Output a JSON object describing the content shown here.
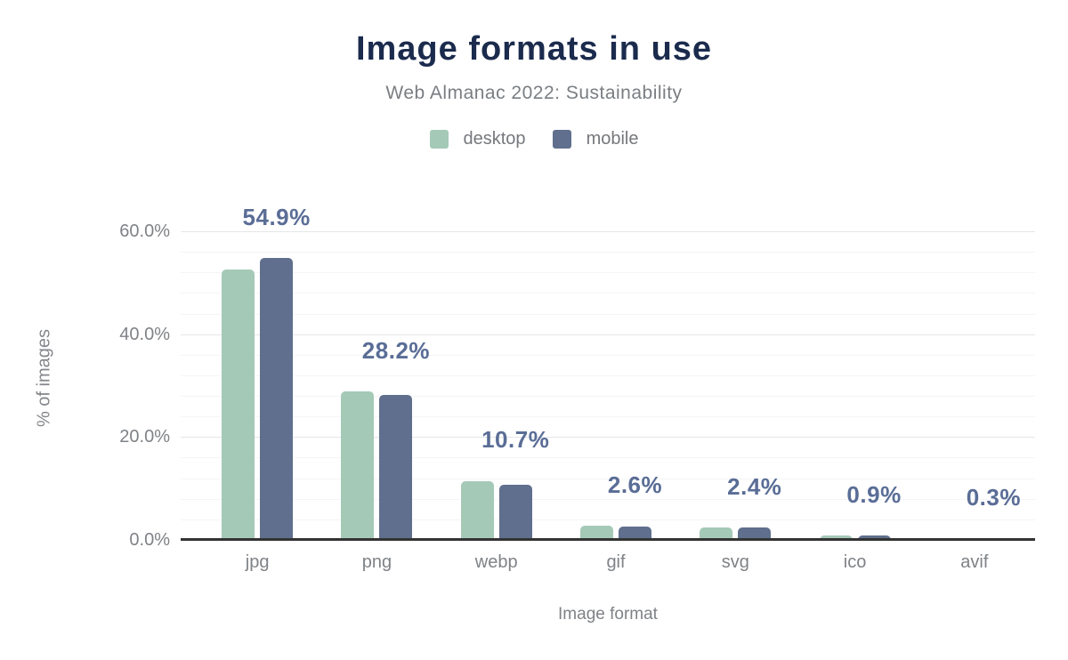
{
  "header": {
    "title": "Image formats in use",
    "subtitle": "Web Almanac 2022: Sustainability"
  },
  "chart_data": {
    "type": "bar",
    "title": "Image formats in use",
    "subtitle": "Web Almanac 2022: Sustainability",
    "categories": [
      "jpg",
      "png",
      "webp",
      "gif",
      "svg",
      "ico",
      "avif"
    ],
    "series": [
      {
        "name": "desktop",
        "color": "#a5c9b7",
        "values": [
          52.5,
          28.9,
          11.5,
          2.8,
          2.5,
          0.8,
          0.3
        ]
      },
      {
        "name": "mobile",
        "color": "#5f6f8d",
        "values": [
          54.9,
          28.2,
          10.7,
          2.6,
          2.4,
          0.9,
          0.3
        ]
      }
    ],
    "value_labels": {
      "annotated_series": "mobile",
      "text": [
        "54.9%",
        "28.2%",
        "10.7%",
        "2.6%",
        "2.4%",
        "0.9%",
        "0.3%"
      ]
    },
    "xlabel": "Image format",
    "ylabel": "% of images",
    "ylim": [
      0,
      60
    ],
    "yticks": [
      {
        "value": 0,
        "label": "0.0%"
      },
      {
        "value": 20,
        "label": "20.0%"
      },
      {
        "value": 40,
        "label": "40.0%"
      },
      {
        "value": 60,
        "label": "60.0%"
      }
    ],
    "grid": {
      "minor_step": 4,
      "major_step": 20,
      "visible": true
    },
    "legend_position": "top"
  },
  "colors": {
    "title": "#1b2b4d",
    "subtitle": "#7a7e82",
    "axis_text": "#7f8286",
    "value_label": "#5a6d96",
    "axis_line": "#333333",
    "grid_major": "#e5e6e8",
    "grid_minor": "#f4f5f6",
    "desktop": "#a5c9b7",
    "mobile": "#5f6f8d",
    "background": "#ffffff"
  }
}
